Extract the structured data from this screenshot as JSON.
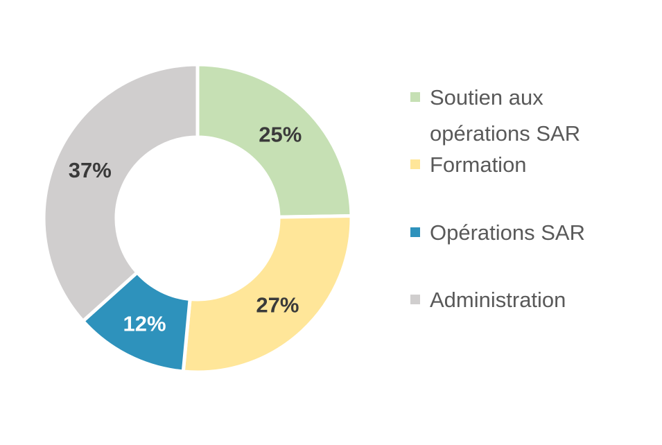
{
  "chart_data": {
    "type": "pie",
    "variant": "donut",
    "slices": [
      {
        "label": "Soutien aux opérations SAR",
        "legend_lines": [
          "Soutien aux",
          "opérations SAR"
        ],
        "value": 25,
        "data_label": "25%",
        "color": "#C6E0B4",
        "label_color": "#3A3A3A"
      },
      {
        "label": "Formation",
        "legend_lines": [
          "Formation"
        ],
        "value": 27,
        "data_label": "27%",
        "color": "#FFE699",
        "label_color": "#3A3A3A"
      },
      {
        "label": "Opérations SAR",
        "legend_lines": [
          "Opérations SAR"
        ],
        "value": 12,
        "data_label": "12%",
        "color": "#2E92BC",
        "label_color": "#FFFFFF"
      },
      {
        "label": "Administration",
        "legend_lines": [
          "Administration"
        ],
        "value": 37,
        "data_label": "37%",
        "color": "#D0CECE",
        "label_color": "#3A3A3A"
      }
    ],
    "start": "12 o'clock",
    "direction": "clockwise",
    "legend_position": "right",
    "title": ""
  }
}
